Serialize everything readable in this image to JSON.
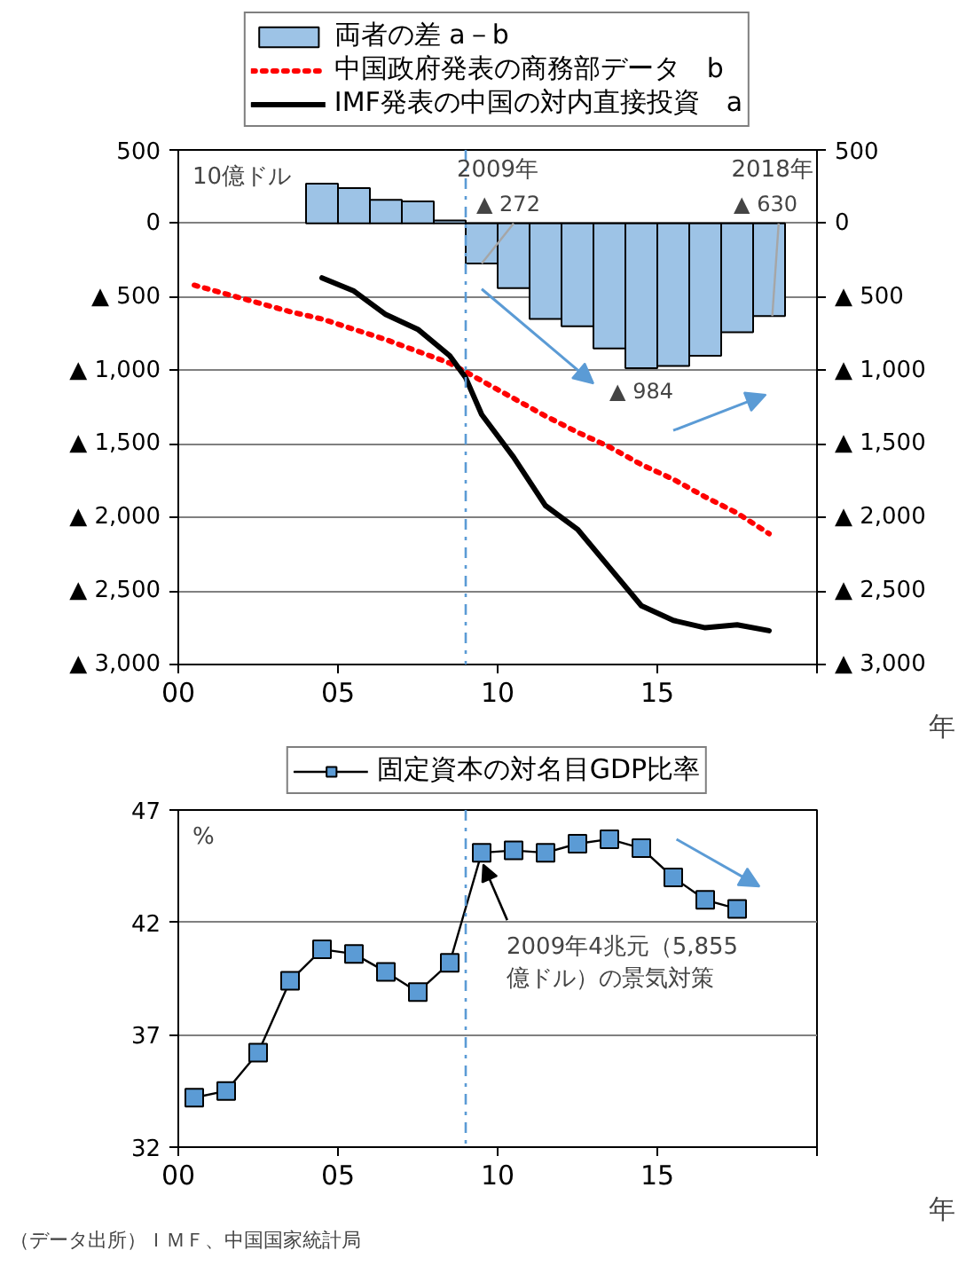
{
  "chart_data": [
    {
      "type": "bar",
      "ylabel": "10億ドル",
      "xlabel": "年",
      "annotations": [
        "2009年",
        "2018年",
        {
          "text": "▲ 272",
          "x": 9.5,
          "y": -272
        },
        {
          "text": "▲ 984",
          "x": 14.5,
          "y": -984
        },
        {
          "text": "▲ 630",
          "x": 18.5,
          "y": -630
        }
      ],
      "xlim": [
        0,
        20
      ],
      "xticks": [
        {
          "value": 0,
          "label": "00"
        },
        {
          "value": 5,
          "label": "05"
        },
        10,
        15,
        {
          "value": 20,
          "label": null
        }
      ],
      "ylim": [
        -3000,
        500
      ],
      "yticks": [
        500,
        0,
        {
          "value": -500,
          "label": "▲ 500"
        },
        {
          "value": -1000,
          "label": "▲ 1,000"
        },
        {
          "value": -1500,
          "label": "▲ 1,500"
        },
        {
          "value": -2000,
          "label": "▲ 2,000"
        },
        {
          "value": -2500,
          "label": "▲ 2,500"
        },
        {
          "value": -3000,
          "label": "▲ 3,000"
        }
      ],
      "y2lim": [
        -3000,
        500
      ],
      "y2ticks": [
        500,
        0,
        {
          "value": -500,
          "label": "▲ 500"
        },
        {
          "value": -1000,
          "label": "▲ 1,000"
        },
        {
          "value": -1500,
          "label": "▲ 1,500"
        },
        {
          "value": -2000,
          "label": "▲ 2,000"
        },
        {
          "value": -2500,
          "label": "▲ 2,500"
        },
        {
          "value": -3000,
          "label": "▲ 3,000"
        }
      ],
      "grid": "y",
      "legend": "top",
      "ref_lines": [
        {
          "axis": "x",
          "value": 9,
          "color": "#5b9bd5",
          "line_style": "dashed"
        }
      ],
      "series": [
        {
          "name": "両者の差 a－b",
          "type": "bar",
          "color": "#9dc3e6",
          "x": [
            4.5,
            5.5,
            6.5,
            7.5,
            8.5,
            9.5,
            10.5,
            11.5,
            12.5,
            13.5,
            14.5,
            15.5,
            16.5,
            17.5,
            18.5
          ],
          "values": [
            270,
            240,
            160,
            150,
            20,
            -272,
            -440,
            -650,
            -700,
            -850,
            -984,
            -970,
            -900,
            -740,
            -630
          ]
        },
        {
          "name": "中国政府発表の商務部データ　b",
          "type": "line",
          "color": "#ff0000",
          "line_style": "dotted",
          "x": [
            0.5,
            1.5,
            2.5,
            3.5,
            4.5,
            5.5,
            6.5,
            7.5,
            8.5,
            9.5,
            10.5,
            11.5,
            12.5,
            13.5,
            14.5,
            15.5,
            16.5,
            17.5,
            18.5
          ],
          "values": [
            -420,
            -480,
            -540,
            -600,
            -650,
            -720,
            -790,
            -870,
            -950,
            -1070,
            -1190,
            -1310,
            -1420,
            -1520,
            -1640,
            -1740,
            -1860,
            -1970,
            -2110
          ]
        },
        {
          "name": "IMF発表の中国の対内直接投資　a",
          "type": "line",
          "color": "#000000",
          "line_style": "solid",
          "x": [
            4.5,
            5.5,
            6.5,
            7.5,
            8.5,
            9.0,
            9.5,
            10.5,
            11.5,
            12.5,
            13.5,
            14.5,
            15.5,
            16.5,
            17.5,
            18.5
          ],
          "values": [
            -370,
            -460,
            -620,
            -720,
            -900,
            -1050,
            -1300,
            -1590,
            -1920,
            -2080,
            -2340,
            -2600,
            -2700,
            -2750,
            -2730,
            -2770
          ]
        }
      ]
    },
    {
      "type": "line",
      "ylabel": "%",
      "xlabel": "年",
      "annotations": [
        {
          "text": "2009年4兆元（5,855\n億ドル）の景気対策",
          "x": 9.5,
          "y": 45.1
        },
        "（データ出所）ＩＭＦ、中国国家統計局"
      ],
      "xlim": [
        0,
        20
      ],
      "xticks": [
        {
          "value": 0,
          "label": "00"
        },
        {
          "value": 5,
          "label": "05"
        },
        10,
        15,
        {
          "value": 20,
          "label": null
        }
      ],
      "ylim": [
        32,
        47
      ],
      "yticks": [
        32,
        37,
        42,
        47
      ],
      "grid": "y",
      "legend": "top",
      "marker": "square",
      "ref_lines": [
        {
          "axis": "x",
          "value": 9,
          "color": "#5b9bd5",
          "line_style": "dashed"
        }
      ],
      "series": [
        {
          "name": "固定資本の対名目GDP比率",
          "color": "#5b9bd5",
          "x": [
            0.5,
            1.5,
            2.5,
            3.5,
            4.5,
            5.5,
            6.5,
            7.5,
            8.5,
            9.5,
            10.5,
            11.5,
            12.5,
            13.5,
            14.5,
            15.5,
            16.5,
            17.5
          ],
          "values": [
            34.2,
            34.5,
            36.2,
            39.4,
            40.8,
            40.6,
            39.8,
            38.9,
            40.2,
            45.1,
            45.2,
            45.1,
            45.5,
            45.7,
            45.3,
            44.0,
            43.0,
            42.6
          ]
        }
      ]
    }
  ]
}
